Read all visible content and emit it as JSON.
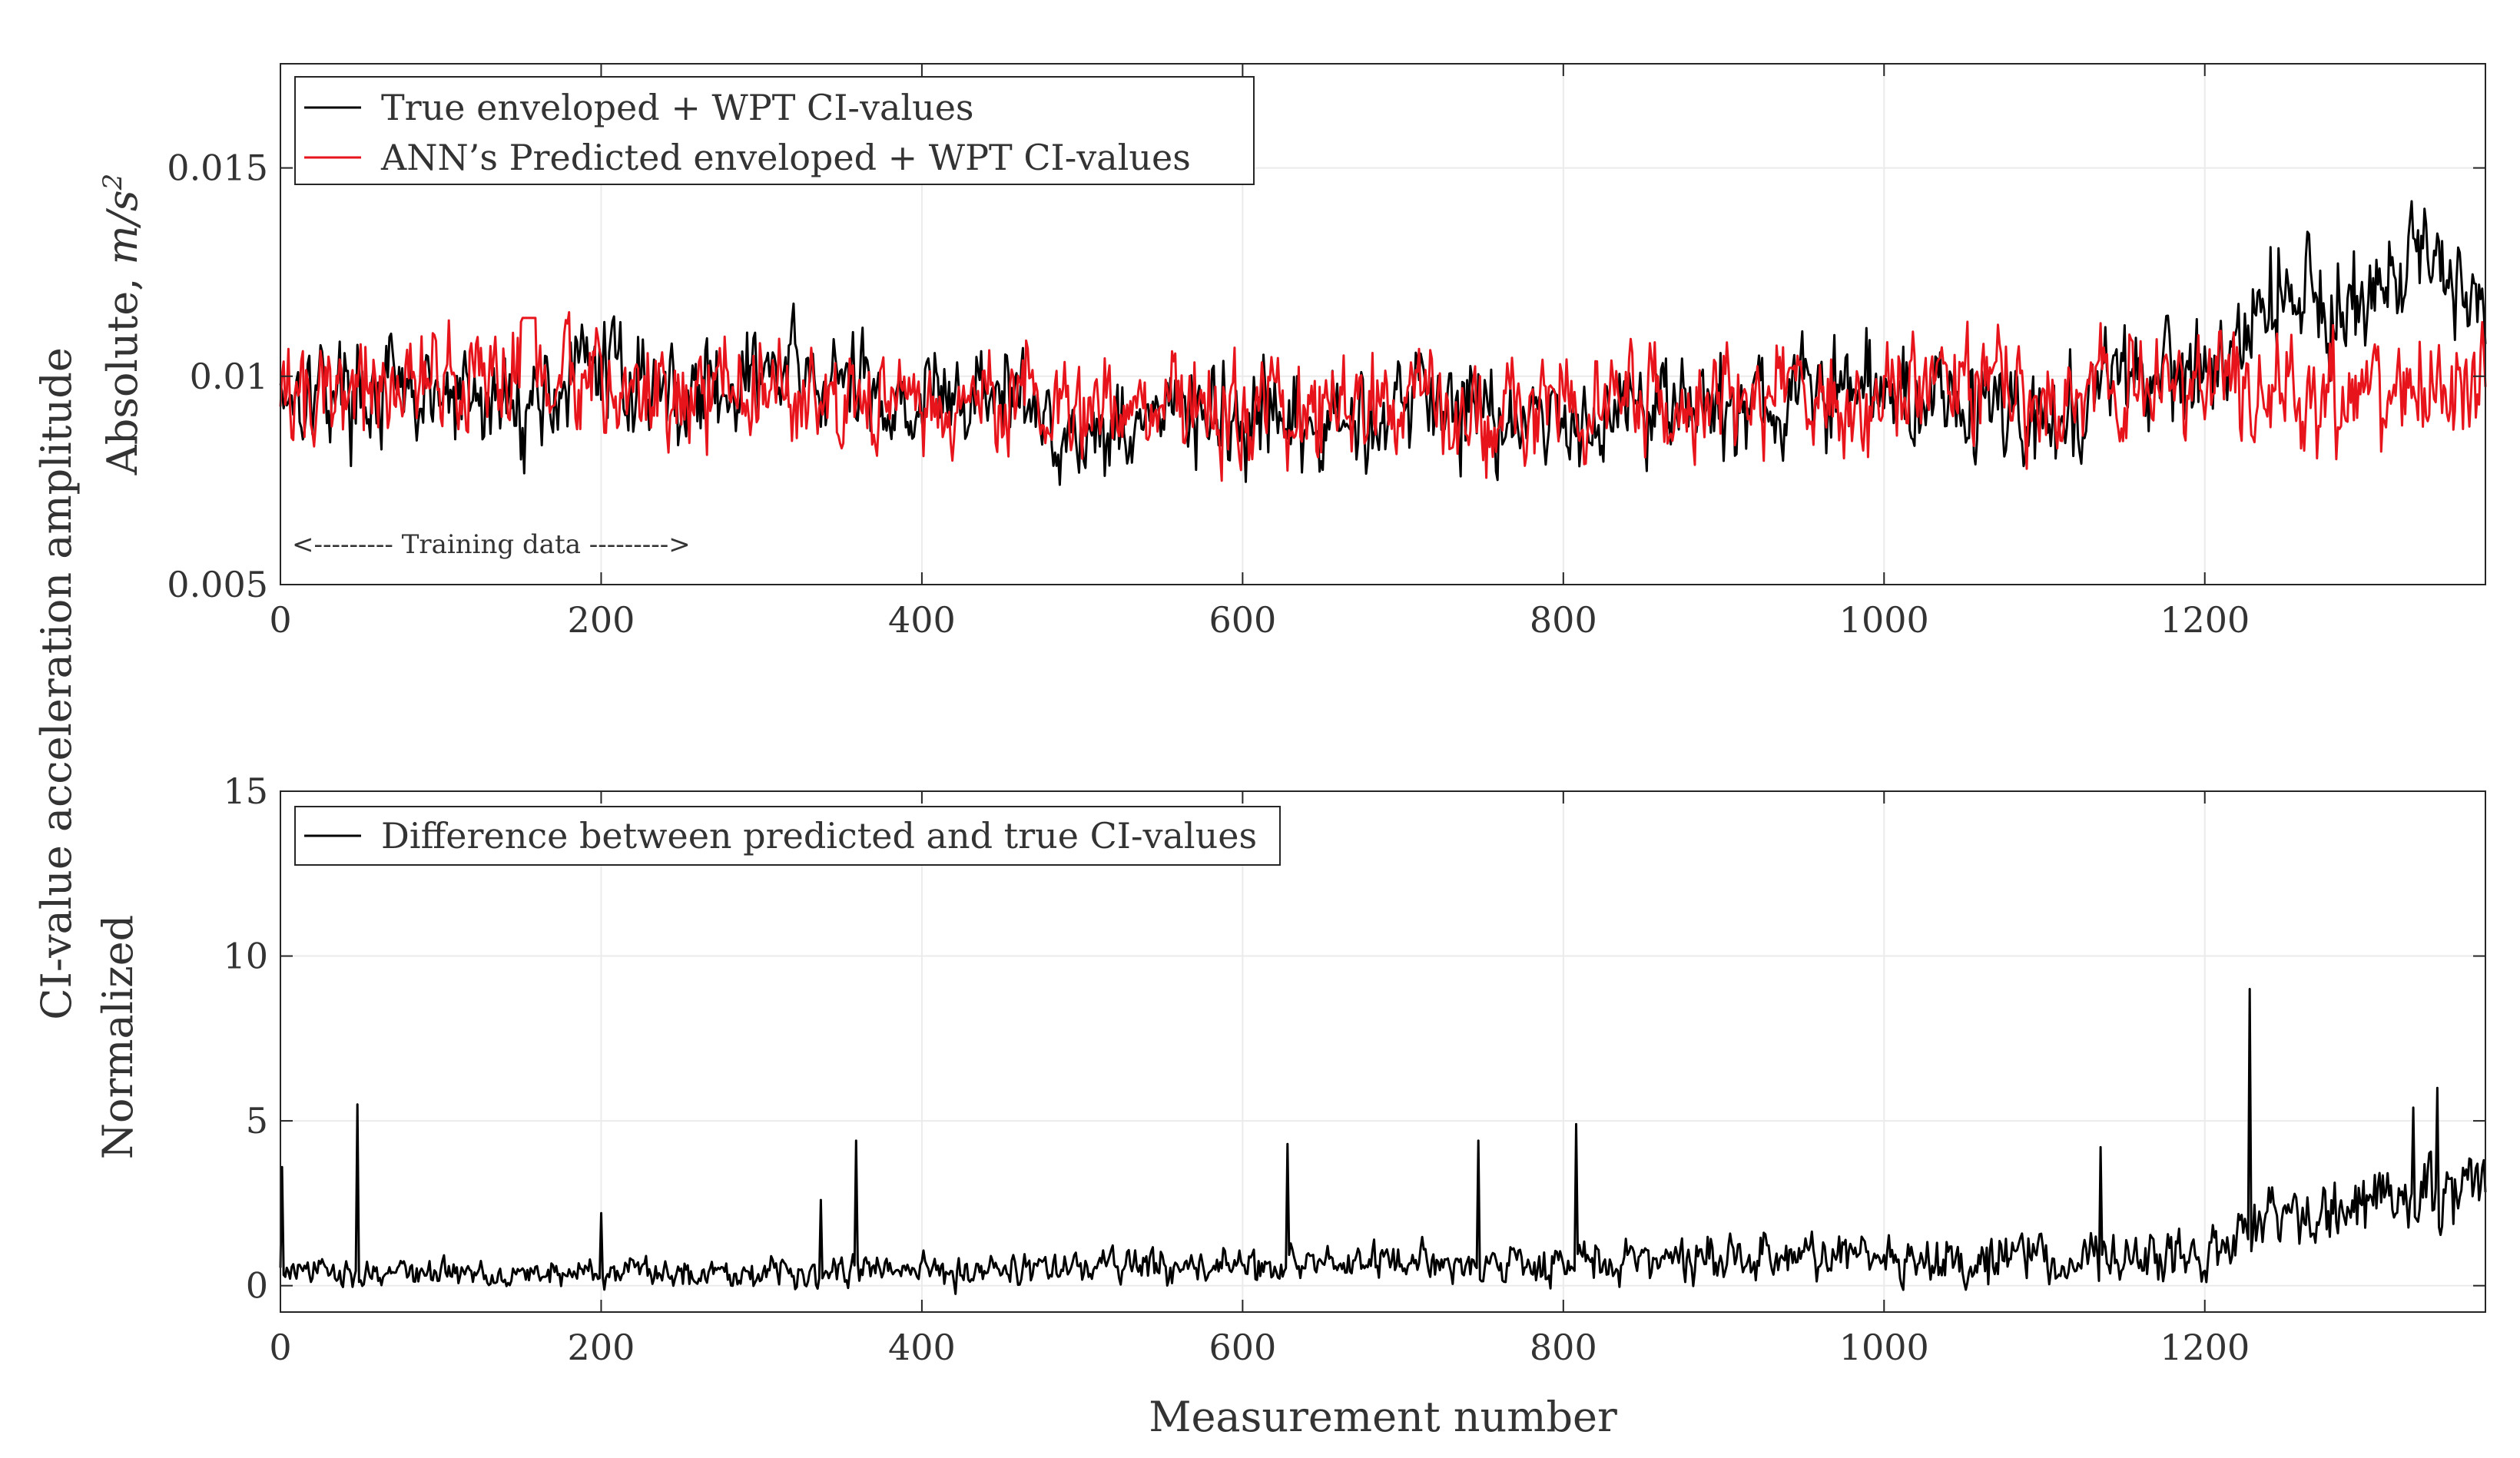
{
  "figure": {
    "ylabel_line1": "CI-value acceleration amplitude",
    "xlabel": "Measurement number"
  },
  "chart_data": [
    {
      "type": "line",
      "ylabel": "Absolute, m/s²",
      "ylabel_text": "Absolute, ",
      "ylabel_unit": "m/s",
      "ylabel_sup": "2",
      "xlim": [
        0,
        1375
      ],
      "ylim": [
        0.005,
        0.0175
      ],
      "xticks": [
        0,
        200,
        400,
        600,
        800,
        1000,
        1200
      ],
      "xtick_labels": [
        "0",
        "200",
        "400",
        "600",
        "800",
        "1000",
        "1200"
      ],
      "yticks": [
        0.005,
        0.01,
        0.015
      ],
      "ytick_labels": [
        "0.005",
        "0.01",
        "0.015"
      ],
      "grid": true,
      "legend_position": "top-left",
      "annotation": "<--------- Training data --------->",
      "series": [
        {
          "name": "True enveloped + WPT CI-values",
          "color": "#000000",
          "approx_profile": {
            "x": [
              0,
              50,
              100,
              150,
              200,
              250,
              300,
              350,
              400,
              450,
              500,
              550,
              600,
              650,
              700,
              750,
              800,
              850,
              900,
              950,
              1000,
              1050,
              1100,
              1150,
              1200,
              1250,
              1300,
              1350,
              1375
            ],
            "mean": [
              0.0098,
              0.0097,
              0.0094,
              0.0093,
              0.0103,
              0.0095,
              0.0101,
              0.0097,
              0.0094,
              0.0096,
              0.0085,
              0.0092,
              0.0088,
              0.0086,
              0.0095,
              0.0094,
              0.0088,
              0.0096,
              0.0092,
              0.0094,
              0.0097,
              0.0095,
              0.0088,
              0.0098,
              0.0103,
              0.0122,
              0.0116,
              0.0128,
              0.0118
            ],
            "amplitude": [
              0.0017,
              0.0018,
              0.0018,
              0.0018,
              0.0017,
              0.0018,
              0.0017,
              0.0019,
              0.0018,
              0.0019,
              0.0015,
              0.0018,
              0.0018,
              0.0017,
              0.0017,
              0.0019,
              0.0014,
              0.0019,
              0.0018,
              0.0018,
              0.0021,
              0.002,
              0.0018,
              0.0019,
              0.0021,
              0.0021,
              0.0022,
              0.0021,
              0.0019
            ]
          }
        },
        {
          "name": "ANN’s Predicted enveloped + WPT CI-values",
          "color": "#e8141c",
          "approx_profile": {
            "x": [
              0,
              200,
              400,
              600,
              800,
              1000,
              1200,
              1375
            ],
            "mean": [
              0.0096,
              0.0097,
              0.0094,
              0.0092,
              0.0093,
              0.0096,
              0.0096,
              0.0095
            ],
            "amplitude": [
              0.0019,
              0.0019,
              0.0019,
              0.0019,
              0.0019,
              0.0019,
              0.0019,
              0.0019
            ]
          }
        }
      ]
    },
    {
      "type": "line",
      "ylabel": "Normalized",
      "xlabel": "Measurement number",
      "xlim": [
        0,
        1375
      ],
      "ylim": [
        -0.8,
        15
      ],
      "xticks": [
        0,
        200,
        400,
        600,
        800,
        1000,
        1200
      ],
      "xtick_labels": [
        "0",
        "200",
        "400",
        "600",
        "800",
        "1000",
        "1200"
      ],
      "yticks": [
        0,
        5,
        10,
        15
      ],
      "ytick_labels": [
        "0",
        "5",
        "10",
        "15"
      ],
      "grid": true,
      "legend_position": "top-left",
      "series": [
        {
          "name": "Difference between predicted and true CI-values",
          "color": "#000000",
          "approx_profile": {
            "x": [
              0,
              200,
              400,
              600,
              800,
              1000,
              1200,
              1250,
              1300,
              1375
            ],
            "mean": [
              0.4,
              0.4,
              0.5,
              0.6,
              0.7,
              0.9,
              0.8,
              2.2,
              2.6,
              2.8
            ],
            "amplitude": [
              0.6,
              0.6,
              0.7,
              0.8,
              0.9,
              1.1,
              1.1,
              1.5,
              1.6,
              1.6
            ]
          },
          "peaks": [
            {
              "x": 1,
              "y": 3.6
            },
            {
              "x": 48,
              "y": 5.5
            },
            {
              "x": 200,
              "y": 2.2
            },
            {
              "x": 337,
              "y": 2.6
            },
            {
              "x": 359,
              "y": 4.4
            },
            {
              "x": 628,
              "y": 4.3
            },
            {
              "x": 747,
              "y": 4.4
            },
            {
              "x": 808,
              "y": 4.9
            },
            {
              "x": 1135,
              "y": 4.2
            },
            {
              "x": 1228,
              "y": 9.0
            },
            {
              "x": 1330,
              "y": 5.4
            },
            {
              "x": 1345,
              "y": 6.0
            }
          ]
        }
      ]
    }
  ]
}
